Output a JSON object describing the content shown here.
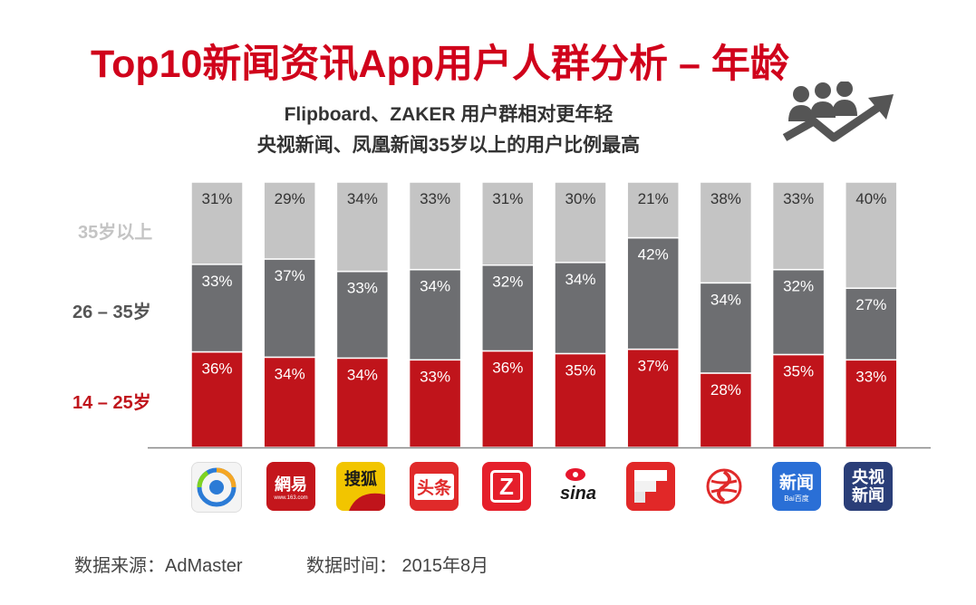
{
  "header": {
    "title": "Top10新闻资讯App用户人群分析 – 年龄",
    "subtitle_line1": "Flipboard、ZAKER 用户群相对更年轻",
    "subtitle_line2": "央视新闻、凤凰新闻35岁以上的用户比例最高"
  },
  "colors": {
    "title": "#d0021b",
    "age_14_25": "#c0141b",
    "age_26_35": "#6d6e71",
    "age_35_plus": "#c4c4c4"
  },
  "chart_data": {
    "type": "bar",
    "stacked": true,
    "normalized": true,
    "categories": [
      "腾讯新闻",
      "网易新闻",
      "搜狐新闻",
      "今日头条",
      "ZAKER",
      "新浪新闻",
      "Flipboard",
      "凤凰新闻",
      "百度新闻",
      "央视新闻"
    ],
    "series": [
      {
        "name": "14 – 25岁",
        "values": [
          36,
          34,
          34,
          33,
          36,
          35,
          37,
          28,
          35,
          33
        ]
      },
      {
        "name": "26 – 35岁",
        "values": [
          33,
          37,
          33,
          34,
          32,
          34,
          42,
          34,
          32,
          27
        ]
      },
      {
        "name": "35岁以上",
        "values": [
          31,
          29,
          34,
          33,
          31,
          30,
          21,
          38,
          33,
          40
        ]
      }
    ],
    "unit": "%"
  },
  "icons": {
    "netease_text": "網易",
    "netease_sub": "www.163.com",
    "sohu_text": "搜狐",
    "toutiao_text": "头条",
    "zaker_text": "Z",
    "sina_text": "sina",
    "baidu_text": "新闻",
    "baidu_sub": "Bai百度",
    "cctv_text1": "央视",
    "cctv_text2": "新闻"
  },
  "footer": {
    "source": "数据来源：AdMaster",
    "time": "数据时间： 2015年8月"
  }
}
